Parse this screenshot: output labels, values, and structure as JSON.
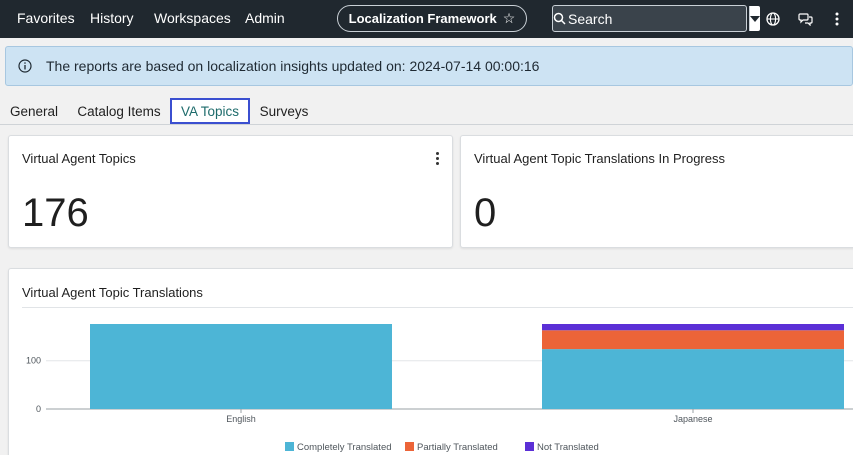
{
  "nav": {
    "items": [
      "Favorites",
      "History",
      "Workspaces",
      "Admin"
    ],
    "title": "Localization Framework",
    "search_placeholder": "Search",
    "icons": [
      "globe-icon",
      "chat-icon",
      "more-vertical-icon"
    ]
  },
  "banner": {
    "text": "The reports are based on localization insights updated on: 2024-07-14 00:00:16"
  },
  "tabs": {
    "items": [
      "General",
      "Catalog Items",
      "VA Topics",
      "Surveys"
    ],
    "active": "VA Topics"
  },
  "cards": {
    "topics": {
      "title": "Virtual Agent Topics",
      "value": "176"
    },
    "in_progress": {
      "title": "Virtual Agent Topic Translations In Progress",
      "value": "0"
    },
    "translations": {
      "title": "Virtual Agent Topic Translations"
    }
  },
  "colors": {
    "completely": "#4db5d6",
    "partially": "#ec6438",
    "not": "#5b2fd6"
  },
  "chart_data": {
    "type": "bar",
    "stacked": true,
    "categories": [
      "English",
      "Japanese"
    ],
    "series": [
      {
        "name": "Completely Translated",
        "values": [
          176,
          124
        ]
      },
      {
        "name": "Partially Translated",
        "values": [
          0,
          39
        ]
      },
      {
        "name": "Not Translated",
        "values": [
          0,
          13
        ]
      }
    ],
    "yticks": [
      0,
      100
    ],
    "ylim": [
      0,
      176
    ],
    "legend": "bottom"
  }
}
